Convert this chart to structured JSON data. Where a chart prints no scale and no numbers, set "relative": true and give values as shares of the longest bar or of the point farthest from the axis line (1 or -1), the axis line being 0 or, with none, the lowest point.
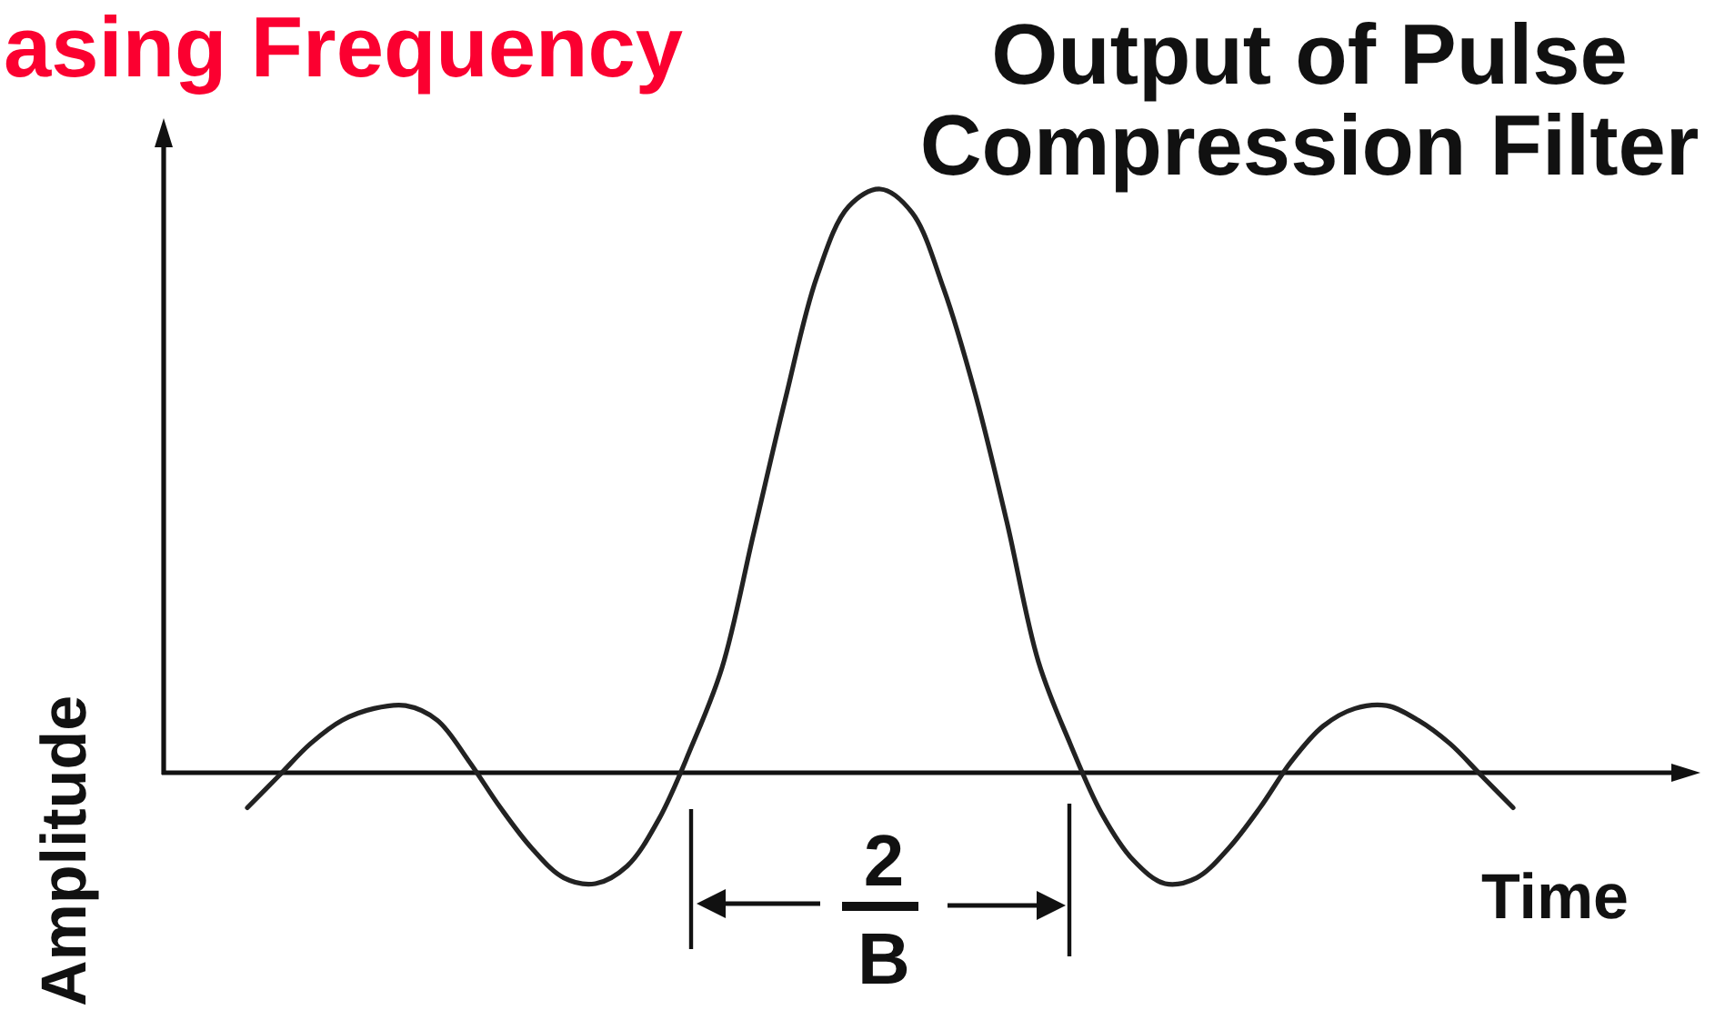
{
  "chart_data": {
    "type": "line",
    "title": "Output of Pulse Compression Filter",
    "xlabel": "Time",
    "ylabel": "Amplitude",
    "annotations": [
      "asing Frequency",
      "2",
      "B"
    ],
    "relative": true,
    "categories": [
      null,
      null,
      null,
      null,
      null,
      null,
      null,
      null,
      null,
      null,
      null,
      null,
      null,
      null,
      null,
      null,
      null,
      null,
      null,
      null,
      null,
      null,
      null,
      null,
      null,
      null,
      null,
      null,
      null,
      null,
      null,
      null,
      null,
      null,
      null,
      null,
      null,
      null,
      null,
      null,
      null
    ],
    "series": [
      {
        "color": "#222222",
        "values": [
          -0.06,
          -0.005,
          0.05,
          0.09,
          0.11,
          0.115,
          0.09,
          0.02,
          -0.06,
          -0.13,
          -0.18,
          -0.19,
          -0.16,
          -0.08,
          0.04,
          0.18,
          0.41,
          0.64,
          0.85,
          0.97,
          1.0,
          0.96,
          0.83,
          0.65,
          0.43,
          0.19,
          0.05,
          -0.07,
          -0.15,
          -0.19,
          -0.18,
          -0.13,
          -0.06,
          0.02,
          0.08,
          0.11,
          0.115,
          0.09,
          0.05,
          -0.005,
          -0.06
        ]
      }
    ]
  }
}
